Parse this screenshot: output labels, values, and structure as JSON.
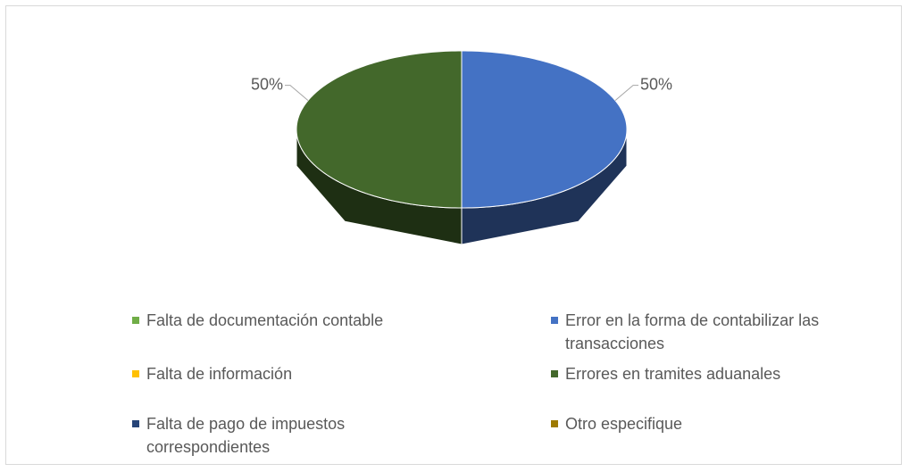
{
  "chart_data": {
    "type": "pie",
    "categories": [
      "Falta de documentación contable",
      "Error en la forma de contabilizar las transacciones",
      "Falta de información",
      "Errores en tramites aduanales",
      "Falta de pago de impuestos correspondientes",
      "Otro especifique"
    ],
    "values": [
      0,
      50,
      0,
      50,
      0,
      0
    ],
    "value_labels": [
      null,
      "50%",
      null,
      "50%",
      null,
      null
    ],
    "colors": [
      "#70ad47",
      "#4472c4",
      "#ffc000",
      "#43682b",
      "#264478",
      "#9e7a00"
    ],
    "legend": "bottom"
  }
}
